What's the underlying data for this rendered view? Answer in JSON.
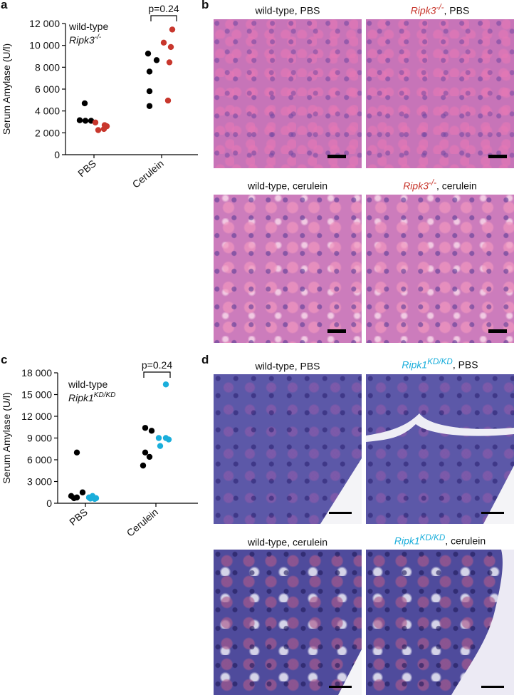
{
  "panel_labels": {
    "a": "a",
    "b": "b",
    "c": "c",
    "d": "d"
  },
  "chart_data": [
    {
      "type": "scatter",
      "panel": "a",
      "title": "",
      "ylabel": "Serum Amylase (U/l)",
      "xlabel": "",
      "ylim": [
        0,
        12000
      ],
      "yticks": [
        0,
        2000,
        4000,
        6000,
        8000,
        10000,
        12000
      ],
      "ytick_labels": [
        "0",
        "2 000",
        "4 000",
        "6 000",
        "8 000",
        "10 000",
        "12 000"
      ],
      "categories": [
        "PBS",
        "Cerulein"
      ],
      "annotation": "p=0.24",
      "series": [
        {
          "name": "wild-type",
          "color": "#000000",
          "points": {
            "PBS": [
              4700,
              3150,
              3100,
              3100
            ],
            "Cerulein": [
              9250,
              8650,
              7600,
              5800,
              4450
            ]
          }
        },
        {
          "name": "Ripk3",
          "name_sup": "-/-",
          "color": "#c8372d",
          "points": {
            "PBS": [
              2950,
              2700,
              2600,
              2250,
              2350
            ],
            "Cerulein": [
              11450,
              10250,
              9850,
              8450,
              4950
            ]
          }
        }
      ]
    },
    {
      "type": "scatter",
      "panel": "c",
      "title": "",
      "ylabel": "Serum Amylase (U/l)",
      "xlabel": "",
      "ylim": [
        0,
        18000
      ],
      "yticks": [
        0,
        3000,
        6000,
        9000,
        12000,
        15000,
        18000
      ],
      "ytick_labels": [
        "0",
        "3 000",
        "6 000",
        "9 000",
        "12 000",
        "15 000",
        "18 000"
      ],
      "categories": [
        "PBS",
        "Cerulein"
      ],
      "annotation": "p=0.24",
      "series": [
        {
          "name": "wild-type",
          "color": "#000000",
          "points": {
            "PBS": [
              7000,
              1500,
              1000,
              800,
              700
            ],
            "Cerulein": [
              10400,
              10000,
              7000,
              6400,
              5200
            ]
          }
        },
        {
          "name": "Ripk1",
          "name_sup": "KD/KD",
          "color": "#1aaedb",
          "points": {
            "PBS": [
              1000,
              800,
              700,
              650,
              600
            ],
            "Cerulein": [
              16400,
              9000,
              9000,
              8800,
              7900
            ]
          }
        }
      ]
    }
  ],
  "panel_b": {
    "titles": [
      {
        "genotype": "wild-type",
        "sup": "",
        "rest": ", PBS"
      },
      {
        "genotype": "Ripk3",
        "sup": "-/-",
        "rest": ", PBS"
      },
      {
        "genotype": "wild-type",
        "sup": "",
        "rest": ", cerulein"
      },
      {
        "genotype": "Ripk3",
        "sup": "-/-",
        "rest": ", cerulein"
      }
    ]
  },
  "panel_d": {
    "titles": [
      {
        "genotype": "wild-type",
        "sup": "",
        "rest": ", PBS"
      },
      {
        "genotype": "Ripk1",
        "sup": "KD/KD",
        "rest": ", PBS"
      },
      {
        "genotype": "wild-type",
        "sup": "",
        "rest": ", cerulein"
      },
      {
        "genotype": "Ripk1",
        "sup": "KD/KD",
        "rest": ", cerulein"
      }
    ]
  }
}
